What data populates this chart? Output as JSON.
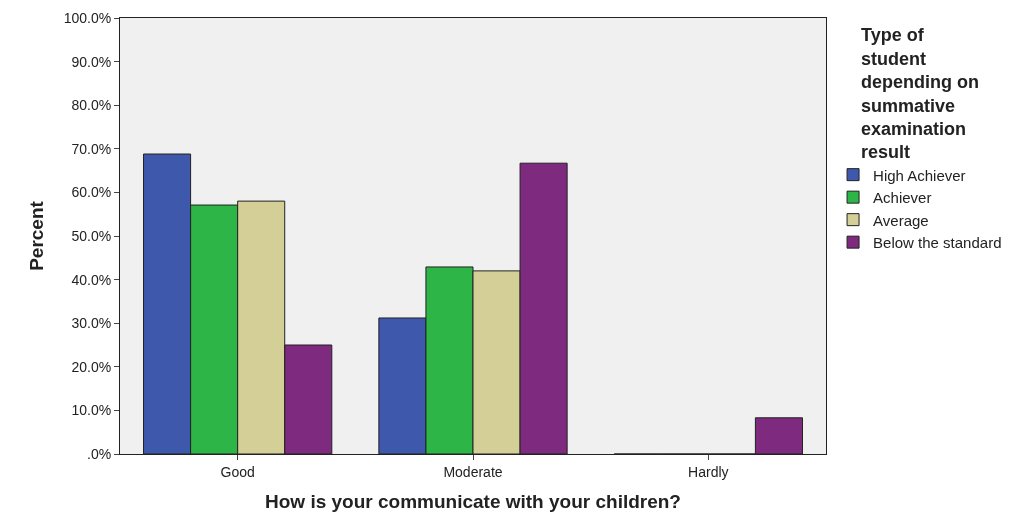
{
  "chart_data": {
    "type": "bar",
    "xlabel": "How is your communicate with your children?",
    "ylabel": "Percent",
    "legend_title": "Type of student depending on summative examination result",
    "categories": [
      "Good",
      "Moderate",
      "Hardly"
    ],
    "series": [
      {
        "name": "High Achiever",
        "color": "#3e58ac",
        "values": [
          68.8,
          31.2,
          0
        ]
      },
      {
        "name": "Achiever",
        "color": "#2eb548",
        "values": [
          57.1,
          42.9,
          0
        ]
      },
      {
        "name": "Average",
        "color": "#d4cf96",
        "values": [
          58.0,
          42.0,
          0
        ]
      },
      {
        "name": "Below the standard",
        "color": "#7e2a7e",
        "values": [
          25.0,
          66.7,
          8.3
        ]
      }
    ],
    "ylim": [
      0,
      100
    ],
    "yticks": [
      {
        "value": 0,
        "label": ".0%"
      },
      {
        "value": 10,
        "label": "10.0%"
      },
      {
        "value": 20,
        "label": "20.0%"
      },
      {
        "value": 30,
        "label": "30.0%"
      },
      {
        "value": 40,
        "label": "40.0%"
      },
      {
        "value": 50,
        "label": "50.0%"
      },
      {
        "value": 60,
        "label": "60.0%"
      },
      {
        "value": 70,
        "label": "70.0%"
      },
      {
        "value": 80,
        "label": "80.0%"
      },
      {
        "value": 90,
        "label": "90.0%"
      },
      {
        "value": 100,
        "label": "100.0%"
      }
    ],
    "grid": false,
    "legend": "right"
  }
}
